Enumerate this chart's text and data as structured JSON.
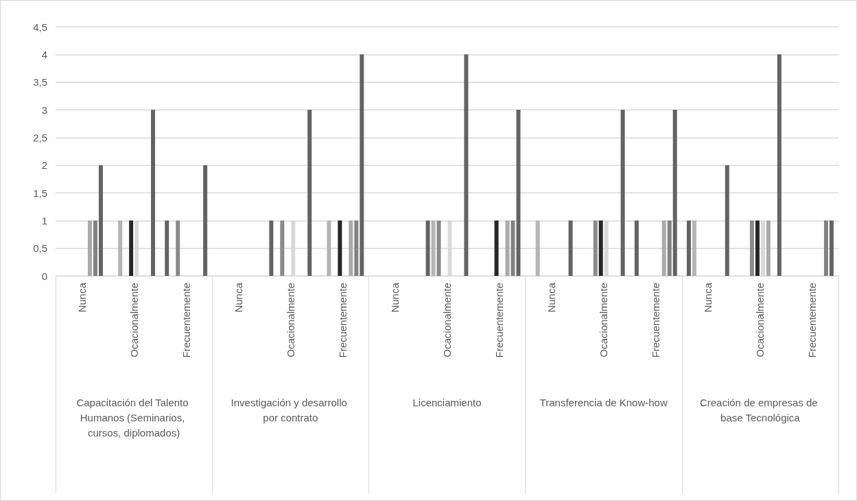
{
  "chart_data": {
    "type": "bar",
    "categories": [
      "Nunca",
      "Ocacionalmente",
      "Frecuentemente",
      "Nunca",
      "Ocacionalmente",
      "Frecuentemente",
      "Nunca",
      "Ocacionalmente",
      "Frecuentemente",
      "Nunca",
      "Ocacionalmente",
      "Frecuentemente",
      "Nunca",
      "Ocacionalmente",
      "Frecuentemente"
    ],
    "annotations": [
      "Capacitación del Talento Humanos (Seminarios, cursos, diplomados)",
      "Investigación y desarrollo por contrato",
      "Licenciamiento",
      "Transferencia de Know-how",
      "Creación de empresas de base Tecnológica"
    ],
    "series": [
      {
        "color": "#636363",
        "values": [
          null,
          null,
          1,
          null,
          1,
          null,
          null,
          1,
          null,
          null,
          null,
          1,
          1,
          null,
          null
        ]
      },
      {
        "color": "#b4b4b4",
        "values": [
          null,
          1,
          null,
          null,
          null,
          1,
          null,
          1,
          null,
          1,
          null,
          null,
          1,
          null,
          null
        ]
      },
      {
        "color": "#8a8a8a",
        "values": [
          null,
          null,
          1,
          null,
          1,
          null,
          null,
          1,
          null,
          null,
          1,
          null,
          null,
          1,
          null
        ]
      },
      {
        "color": "#262626",
        "values": [
          null,
          1,
          null,
          null,
          null,
          1,
          null,
          null,
          1,
          null,
          1,
          null,
          null,
          1,
          null
        ]
      },
      {
        "color": "#d9d9d9",
        "values": [
          null,
          1,
          null,
          null,
          1,
          null,
          null,
          1,
          null,
          null,
          1,
          null,
          null,
          1,
          null
        ]
      },
      {
        "color": "#aaaaaa",
        "values": [
          1,
          null,
          null,
          null,
          null,
          1,
          null,
          null,
          1,
          null,
          null,
          1,
          null,
          1,
          null
        ]
      },
      {
        "color": "#828282",
        "values": [
          1,
          null,
          null,
          null,
          null,
          1,
          null,
          null,
          1,
          null,
          null,
          1,
          null,
          null,
          1
        ]
      },
      {
        "color": "#636363",
        "values": [
          2,
          3,
          2,
          null,
          3,
          4,
          null,
          4,
          3,
          1,
          3,
          3,
          2,
          4,
          1
        ]
      }
    ],
    "ylim": [
      0,
      4.5
    ],
    "yticks": [
      0,
      {
        "value": 0.5,
        "label": "0,5"
      },
      1,
      {
        "value": 1.5,
        "label": "1,5"
      },
      2,
      {
        "value": 2.5,
        "label": "2,5"
      },
      3,
      {
        "value": 3.5,
        "label": "3,5"
      },
      4,
      {
        "value": 4.5,
        "label": "4,5"
      }
    ],
    "grid": "y"
  }
}
